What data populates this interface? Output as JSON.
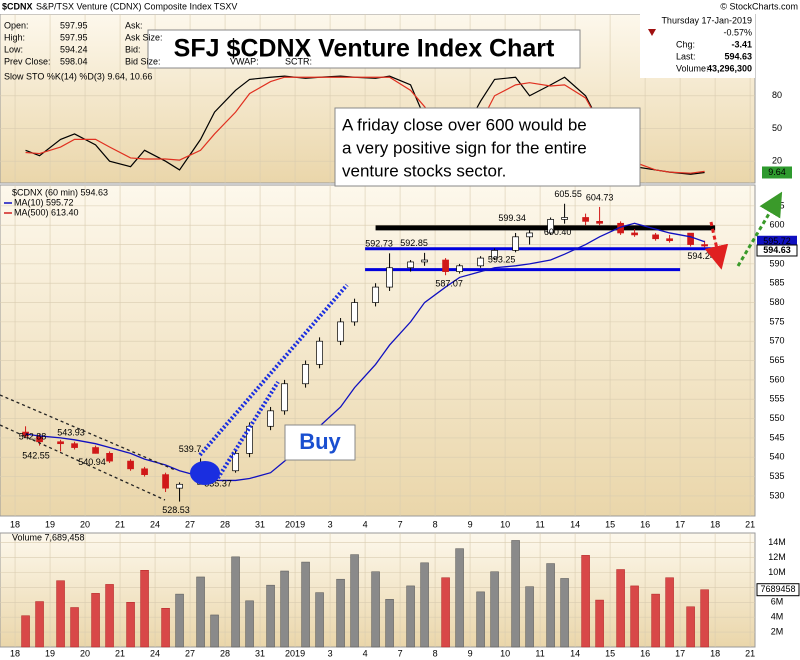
{
  "header": {
    "symbol": "$CDNX",
    "name": "S&P/TSX Venture (CDNX) Composite Index  TSXV",
    "credit": "© StockCharts.com",
    "quote": [
      [
        "Open:",
        "597.95"
      ],
      [
        "High:",
        "597.95"
      ],
      [
        "Low:",
        "594.24"
      ],
      [
        "Prev Close:",
        "598.04"
      ]
    ],
    "book": [
      "Ask:",
      "Ask Size:",
      "Bid:",
      "Bid Size:"
    ],
    "extra": [
      "VWAP:",
      "SCTR:"
    ],
    "date": "Thursday  17-Jan-2019",
    "change_pct": "-0.57%",
    "summary": [
      [
        "Chg:",
        "-3.41"
      ],
      [
        "Last:",
        "594.63"
      ],
      [
        "Volume:",
        "43,296,300"
      ]
    ]
  },
  "title_box": "SFJ $CDNX Venture Index Chart",
  "annotation_lines": [
    "A friday close over 600 would be",
    "a very positive sign for the entire",
    "venture stocks sector."
  ],
  "buy_label": "Buy",
  "chart_data": [
    {
      "type": "line",
      "title": "Slow STO %K(14) %D(3) 9.64, 10.66",
      "x": [
        0.3,
        0.7,
        1.3,
        1.7,
        2.3,
        2.7,
        3.3,
        3.7,
        4.3,
        4.7,
        5.3,
        5.7,
        6.3,
        6.7,
        7.3,
        7.7,
        8.3,
        8.7,
        9.3,
        9.7,
        10.3,
        10.7,
        11.3,
        11.7,
        12.3,
        12.7,
        13.3,
        13.7,
        14.3,
        14.7,
        15.3,
        15.7,
        16.3,
        16.7,
        17.3,
        17.7,
        18.3,
        18.7,
        19.3,
        19.7
      ],
      "series": [
        {
          "color": "#000000",
          "values": [
            30,
            25,
            40,
            45,
            35,
            20,
            15,
            30,
            20,
            12,
            40,
            65,
            85,
            95,
            97,
            98,
            96,
            97,
            98,
            97,
            96,
            98,
            90,
            60,
            25,
            40,
            75,
            95,
            97,
            80,
            90,
            97,
            80,
            55,
            30,
            15,
            12,
            10,
            8,
            9.64
          ]
        },
        {
          "color": "#e03020",
          "values": [
            28,
            27,
            33,
            40,
            40,
            33,
            23,
            22,
            22,
            21,
            30,
            45,
            65,
            82,
            93,
            97,
            97,
            97,
            97,
            97,
            97,
            97,
            85,
            70,
            45,
            40,
            55,
            80,
            90,
            92,
            89,
            90,
            78,
            55,
            33,
            19,
            12,
            10,
            9,
            10.66
          ]
        }
      ],
      "xlim": [
        -0.43,
        21.14
      ],
      "ylim": [
        0,
        155
      ],
      "yticks": [
        20,
        50,
        80
      ],
      "grid": true
    },
    {
      "type": "candlestick",
      "label": "$CDNX (60 min) 594.63",
      "x": [
        0.3,
        0.7,
        1.3,
        1.7,
        2.3,
        2.7,
        3.3,
        3.7,
        4.3,
        4.7,
        5.3,
        5.7,
        6.3,
        6.7,
        7.3,
        7.7,
        8.3,
        8.7,
        9.3,
        9.7,
        10.3,
        10.7,
        11.3,
        11.7,
        12.3,
        12.7,
        13.3,
        13.7,
        14.3,
        14.7,
        15.3,
        15.7,
        16.3,
        16.7,
        17.3,
        17.7,
        18.3,
        18.7,
        19.3,
        19.7
      ],
      "open": [
        546.5,
        545.5,
        544,
        543.5,
        542.5,
        541,
        539,
        537,
        535.5,
        532,
        533,
        536,
        536.5,
        541,
        548,
        552,
        559,
        564,
        570,
        575,
        580,
        584,
        589,
        590.5,
        591,
        588,
        589.5,
        591.5,
        593.5,
        597,
        598,
        601.5,
        602,
        601,
        600.5,
        598,
        597.5,
        596.5,
        597.95,
        595
      ],
      "high": [
        548,
        546,
        544.5,
        544,
        543,
        541.5,
        539.5,
        537.5,
        536,
        533.5,
        539.7,
        537,
        542,
        549,
        553,
        560,
        565,
        571,
        576,
        581,
        585,
        592.73,
        591,
        592.85,
        591.5,
        590,
        592,
        594,
        598,
        599.34,
        602,
        605.55,
        603,
        604.73,
        601,
        599,
        598,
        597.5,
        597.95,
        596
      ],
      "low": [
        545,
        543,
        541.5,
        542,
        540.94,
        538.5,
        536.5,
        535,
        531,
        528.53,
        533,
        535.37,
        536,
        540,
        547,
        551,
        558,
        563,
        569,
        574,
        579,
        583,
        588,
        589.5,
        587.07,
        587.5,
        589,
        591,
        593,
        595,
        597.5,
        600.4,
        600,
        600,
        597.5,
        597,
        596,
        595.5,
        594.5,
        594.24
      ],
      "close": [
        545.5,
        544,
        543.5,
        542.5,
        541,
        539,
        537,
        535.5,
        532,
        533,
        536,
        536.5,
        541,
        548,
        552,
        559,
        564,
        570,
        575,
        580,
        584,
        589,
        590.5,
        591,
        588,
        589.5,
        591.5,
        593.5,
        597,
        598,
        601.5,
        602,
        601,
        600.5,
        598,
        597.5,
        596.5,
        596,
        595,
        594.63
      ],
      "series": [
        {
          "name": "MA(10) 595.72",
          "color": "#1010c0",
          "values": [
            546,
            545.5,
            545,
            544.5,
            543.5,
            542.5,
            541,
            539.5,
            538,
            536.5,
            535,
            534,
            534,
            534.5,
            536,
            539,
            543,
            548,
            553,
            558,
            564,
            569,
            575,
            580,
            584,
            586.5,
            588,
            589,
            589.5,
            590,
            591,
            592.5,
            595,
            597,
            599.5,
            600.5,
            599,
            598,
            597,
            595.72
          ]
        },
        {
          "name": "MA(500) 613.40",
          "color": "#d02020"
        }
      ],
      "levels": [
        {
          "value": 599.3,
          "x": [
            10.3,
            20
          ],
          "color": "#000000"
        },
        {
          "value": 593.9,
          "x": [
            10,
            20
          ],
          "color": "#0000dd"
        },
        {
          "value": 588.5,
          "x": [
            10,
            19
          ],
          "color": "#0000dd"
        }
      ],
      "high_labels": {
        "x": [
          0.5,
          1.6,
          5.0,
          10.4,
          11.4,
          14.2,
          15.8,
          16.7
        ],
        "values": [
          542.88,
          543.93,
          539.7,
          592.73,
          592.85,
          599.34,
          605.55,
          604.73
        ],
        "value_labels": [
          "542.88",
          "543.93",
          "539.7",
          "592.73",
          "592.85",
          "599.34",
          "605.55",
          "604.73"
        ]
      },
      "low_labels": {
        "x": [
          0.6,
          2.2,
          4.6,
          5.8,
          12.4,
          13.9,
          15.5,
          19.6
        ],
        "values": [
          542.55,
          540.94,
          528.53,
          535.37,
          587.07,
          593.25,
          600.4,
          594.24
        ],
        "value_labels": [
          "542.55",
          "540.94",
          "528.53",
          "535.37",
          "587.07",
          "593.25",
          "600.40",
          "594.24"
        ]
      },
      "xlim": [
        -0.43,
        21.14
      ],
      "ylim": [
        524.8,
        610.4
      ],
      "yticks": [
        530,
        535,
        540,
        545,
        550,
        555,
        560,
        565,
        570,
        575,
        580,
        585,
        590,
        595,
        600,
        605
      ],
      "xticks": [
        {
          "value": 0,
          "label": "18"
        },
        {
          "value": 1,
          "label": "19"
        },
        {
          "value": 2,
          "label": "20"
        },
        {
          "value": 3,
          "label": "21"
        },
        {
          "value": 4,
          "label": "24"
        },
        {
          "value": 5,
          "label": "27"
        },
        {
          "value": 6,
          "label": "28"
        },
        {
          "value": 7,
          "label": "31"
        },
        {
          "value": 8,
          "label": "2019"
        },
        {
          "value": 9,
          "label": "3"
        },
        {
          "value": 10,
          "label": "4"
        },
        {
          "value": 11,
          "label": "7"
        },
        {
          "value": 12,
          "label": "8"
        },
        {
          "value": 13,
          "label": "9"
        },
        {
          "value": 14,
          "label": "10"
        },
        {
          "value": 15,
          "label": "11"
        },
        {
          "value": 16,
          "label": "14"
        },
        {
          "value": 17,
          "label": "15"
        },
        {
          "value": 18,
          "label": "16"
        },
        {
          "value": 19,
          "label": "17"
        },
        {
          "value": 20,
          "label": "18"
        },
        {
          "value": 21,
          "label": "21"
        }
      ],
      "grid": true
    },
    {
      "type": "bar",
      "title": "Volume 7,689,458",
      "x": [
        0.3,
        0.7,
        1.3,
        1.7,
        2.3,
        2.7,
        3.3,
        3.7,
        4.3,
        4.7,
        5.3,
        5.7,
        6.3,
        6.7,
        7.3,
        7.7,
        8.3,
        8.7,
        9.3,
        9.7,
        10.3,
        10.7,
        11.3,
        11.7,
        12.3,
        12.7,
        13.3,
        13.7,
        14.3,
        14.7,
        15.3,
        15.7,
        16.3,
        16.7,
        17.3,
        17.7,
        18.3,
        18.7,
        19.3,
        19.7
      ],
      "values": [
        4200000,
        6100000,
        8900000,
        5300000,
        7200000,
        8400000,
        6000000,
        10300000,
        5200000,
        7100000,
        9400000,
        4300000,
        12100000,
        6200000,
        8300000,
        10200000,
        11400000,
        7300000,
        9100000,
        12400000,
        10100000,
        6400000,
        8200000,
        11300000,
        9300000,
        13200000,
        7400000,
        10100000,
        14300000,
        8100000,
        11200000,
        9200000,
        12300000,
        6300000,
        10400000,
        8200000,
        7100000,
        9300000,
        5400000,
        7689458
      ],
      "xlim": [
        -0.43,
        21.14
      ],
      "ylim": [
        0,
        15300000
      ],
      "yticks": [
        {
          "value": 2000000,
          "label": "2M"
        },
        {
          "value": 4000000,
          "label": "4M"
        },
        {
          "value": 6000000,
          "label": "6M"
        },
        {
          "value": 8000000,
          "label": "8M"
        },
        {
          "value": 10000000,
          "label": "10M"
        },
        {
          "value": 12000000,
          "label": "12M"
        },
        {
          "value": 14000000,
          "label": "14M"
        }
      ],
      "xticks": [
        {
          "value": 0,
          "label": "18"
        },
        {
          "value": 1,
          "label": "19"
        },
        {
          "value": 2,
          "label": "20"
        },
        {
          "value": 3,
          "label": "21"
        },
        {
          "value": 4,
          "label": "24"
        },
        {
          "value": 5,
          "label": "27"
        },
        {
          "value": 6,
          "label": "28"
        },
        {
          "value": 7,
          "label": "31"
        },
        {
          "value": 8,
          "label": "2019"
        },
        {
          "value": 9,
          "label": "3"
        },
        {
          "value": 10,
          "label": "4"
        },
        {
          "value": 11,
          "label": "7"
        },
        {
          "value": 12,
          "label": "8"
        },
        {
          "value": 13,
          "label": "9"
        },
        {
          "value": 14,
          "label": "10"
        },
        {
          "value": 15,
          "label": "11"
        },
        {
          "value": 16,
          "label": "14"
        },
        {
          "value": 17,
          "label": "15"
        },
        {
          "value": 18,
          "label": "16"
        },
        {
          "value": 19,
          "label": "17"
        },
        {
          "value": 20,
          "label": "18"
        },
        {
          "value": 21,
          "label": "21"
        }
      ],
      "grid": true
    }
  ]
}
